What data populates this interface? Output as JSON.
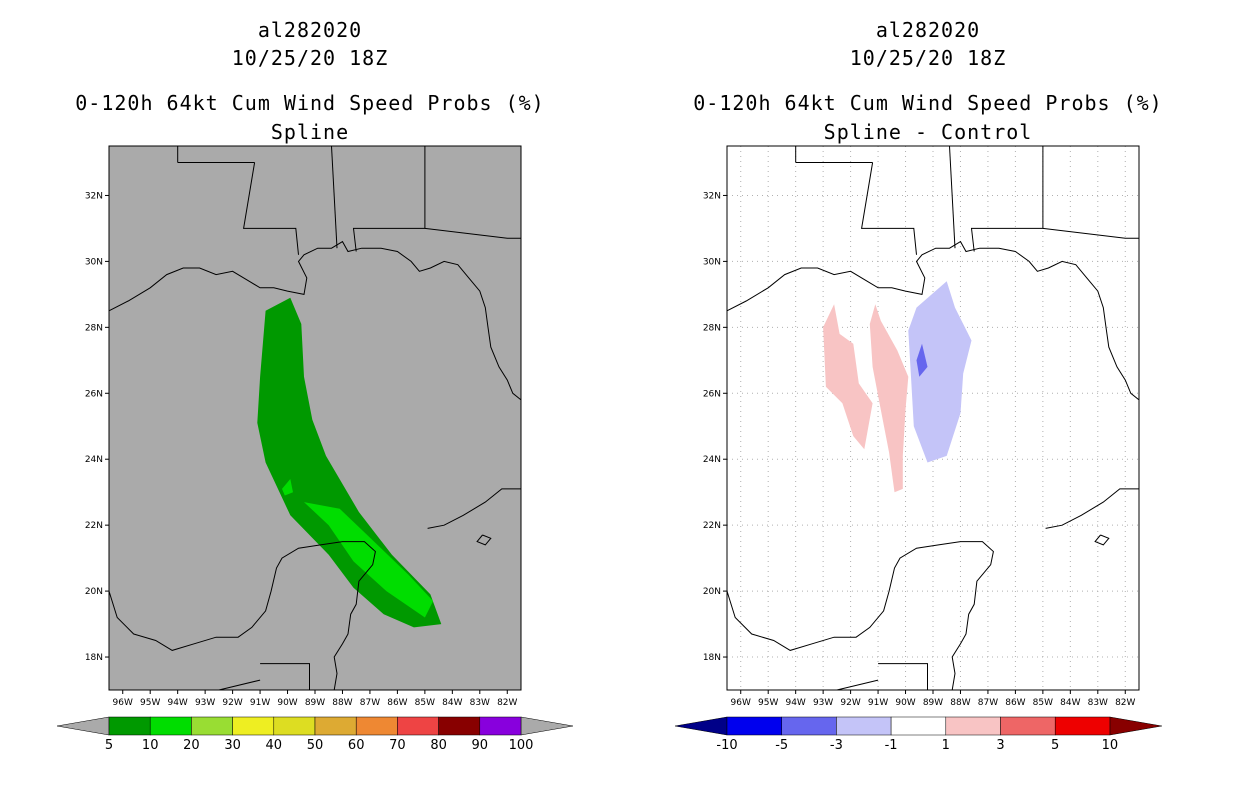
{
  "chart_data": [
    {
      "type": "map-contour",
      "storm_id": "al282020",
      "datetime": "10/25/20 18Z",
      "title": "0-120h 64kt Cum Wind Speed Probs (%)",
      "subtitle": "Spline",
      "xlim": [
        -96.5,
        -81.5
      ],
      "ylim": [
        17,
        33.5
      ],
      "x_ticks": [
        "96W",
        "95W",
        "94W",
        "93W",
        "92W",
        "91W",
        "90W",
        "89W",
        "88W",
        "87W",
        "86W",
        "85W",
        "84W",
        "83W",
        "82W"
      ],
      "y_ticks": [
        "18N",
        "20N",
        "22N",
        "24N",
        "26N",
        "28N",
        "30N",
        "32N"
      ],
      "background": "#aaaaaa",
      "colorbar": {
        "labels": [
          "5",
          "10",
          "20",
          "30",
          "40",
          "50",
          "60",
          "70",
          "80",
          "90",
          "100"
        ],
        "colors": [
          "#009900",
          "#00dd00",
          "#99dd33",
          "#eeee22",
          "#dddd22",
          "#ddaa33",
          "#ee8833",
          "#ee4444",
          "#880000",
          "#8800dd"
        ],
        "under_color": "#aaaaaa",
        "over_color": "#aaaaaa"
      },
      "regions": [
        {
          "level": "5-10",
          "color": "#009900",
          "polygon": [
            [
              -89.9,
              28.9
            ],
            [
              -90.8,
              28.5
            ],
            [
              -91.0,
              26.5
            ],
            [
              -91.1,
              25.1
            ],
            [
              -90.8,
              23.9
            ],
            [
              -89.9,
              22.3
            ],
            [
              -88.5,
              21.1
            ],
            [
              -87.6,
              20.1
            ],
            [
              -86.5,
              19.3
            ],
            [
              -85.4,
              18.9
            ],
            [
              -84.4,
              19.0
            ],
            [
              -84.8,
              19.9
            ],
            [
              -86.2,
              21.1
            ],
            [
              -87.4,
              22.4
            ],
            [
              -88.6,
              24.1
            ],
            [
              -89.1,
              25.2
            ],
            [
              -89.4,
              26.5
            ],
            [
              -89.5,
              28.1
            ]
          ]
        },
        {
          "level": "10-20",
          "color": "#00dd00",
          "polygon": [
            [
              -89.4,
              22.7
            ],
            [
              -88.5,
              22.0
            ],
            [
              -87.6,
              20.9
            ],
            [
              -86.4,
              20.0
            ],
            [
              -85.0,
              19.2
            ],
            [
              -84.7,
              19.7
            ],
            [
              -85.6,
              20.5
            ],
            [
              -87.1,
              21.7
            ],
            [
              -88.1,
              22.5
            ]
          ]
        },
        {
          "level": "10-20",
          "color": "#00dd00",
          "polygon": [
            [
              -89.9,
              23.4
            ],
            [
              -90.2,
              23.1
            ],
            [
              -90.1,
              22.9
            ],
            [
              -89.8,
              23.0
            ]
          ]
        }
      ]
    },
    {
      "type": "map-contour",
      "storm_id": "al282020",
      "datetime": "10/25/20 18Z",
      "title": "0-120h 64kt Cum Wind Speed Probs (%)",
      "subtitle": "Spline - Control",
      "xlim": [
        -96.5,
        -81.5
      ],
      "ylim": [
        17,
        33.5
      ],
      "x_ticks": [
        "96W",
        "95W",
        "94W",
        "93W",
        "92W",
        "91W",
        "90W",
        "89W",
        "88W",
        "87W",
        "86W",
        "85W",
        "84W",
        "83W",
        "82W"
      ],
      "y_ticks": [
        "18N",
        "20N",
        "22N",
        "24N",
        "26N",
        "28N",
        "30N",
        "32N"
      ],
      "background": "#ffffff",
      "colorbar": {
        "labels": [
          "-10",
          "-5",
          "-3",
          "-1",
          "1",
          "3",
          "5",
          "10"
        ],
        "colors": [
          "#0000ee",
          "#6666ee",
          "#c4c4f8",
          "#ffffff",
          "#f8c4c4",
          "#ee6666",
          "#ee0000"
        ],
        "under_color": "#000088",
        "over_color": "#880000"
      },
      "regions": [
        {
          "level": "1-3",
          "color": "#f8c4c4",
          "polygon": [
            [
              -92.6,
              28.7
            ],
            [
              -93.0,
              28.0
            ],
            [
              -92.9,
              26.2
            ],
            [
              -92.3,
              25.7
            ],
            [
              -91.9,
              24.7
            ],
            [
              -91.5,
              24.3
            ],
            [
              -91.2,
              25.7
            ],
            [
              -91.7,
              26.3
            ],
            [
              -91.9,
              27.5
            ],
            [
              -92.4,
              27.8
            ]
          ]
        },
        {
          "level": "1-3",
          "color": "#f8c4c4",
          "polygon": [
            [
              -91.1,
              28.7
            ],
            [
              -91.3,
              28.1
            ],
            [
              -91.2,
              26.8
            ],
            [
              -90.9,
              25.5
            ],
            [
              -90.6,
              24.2
            ],
            [
              -90.4,
              23.0
            ],
            [
              -90.1,
              23.1
            ],
            [
              -90.1,
              24.1
            ],
            [
              -90.0,
              25.5
            ],
            [
              -89.9,
              26.5
            ],
            [
              -90.3,
              27.3
            ],
            [
              -90.9,
              28.2
            ]
          ]
        },
        {
          "level": "-3--1",
          "color": "#c4c4f8",
          "polygon": [
            [
              -88.5,
              29.4
            ],
            [
              -89.6,
              28.6
            ],
            [
              -89.9,
              27.9
            ],
            [
              -89.8,
              26.5
            ],
            [
              -89.7,
              25.0
            ],
            [
              -89.2,
              23.9
            ],
            [
              -88.5,
              24.1
            ],
            [
              -88.0,
              25.4
            ],
            [
              -87.9,
              26.6
            ],
            [
              -87.6,
              27.6
            ],
            [
              -88.2,
              28.6
            ]
          ]
        },
        {
          "level": "-5--3",
          "color": "#6666ee",
          "polygon": [
            [
              -89.4,
              27.5
            ],
            [
              -89.6,
              27.0
            ],
            [
              -89.5,
              26.5
            ],
            [
              -89.2,
              26.8
            ]
          ]
        }
      ]
    }
  ]
}
